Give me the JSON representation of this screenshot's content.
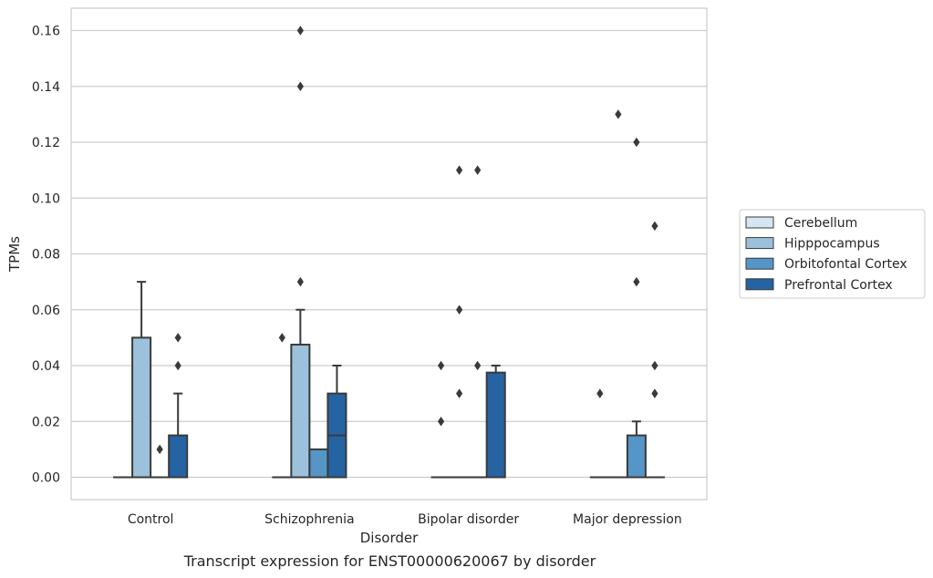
{
  "caption": "Transcript expression for ENST00000620067 by disorder",
  "chart_data": {
    "type": "box",
    "xlabel": "Disorder",
    "ylabel": "TPMs",
    "ylim": [
      -0.008,
      0.168
    ],
    "yticks": [
      "0.00",
      "0.02",
      "0.04",
      "0.06",
      "0.08",
      "0.10",
      "0.12",
      "0.14",
      "0.16"
    ],
    "grid": "horizontal",
    "legend_position": "right",
    "categories": [
      "Control",
      "Schizophrenia",
      "Bipolar disorder",
      "Major depression"
    ],
    "series": [
      {
        "name": "Cerebellum",
        "color": "#d6e5f2",
        "boxes": [
          {
            "q1": 0,
            "median": 0,
            "q3": 0,
            "whisker_low": 0,
            "whisker_high": 0,
            "outliers": []
          },
          {
            "q1": 0,
            "median": 0,
            "q3": 0,
            "whisker_low": 0,
            "whisker_high": 0,
            "outliers": [
              0.05
            ]
          },
          {
            "q1": 0,
            "median": 0,
            "q3": 0,
            "whisker_low": 0,
            "whisker_high": 0,
            "outliers": [
              0.02,
              0.04
            ]
          },
          {
            "q1": 0,
            "median": 0,
            "q3": 0,
            "whisker_low": 0,
            "whisker_high": 0,
            "outliers": [
              0.03
            ]
          }
        ]
      },
      {
        "name": "Hipppocampus",
        "color": "#9cc1dc",
        "boxes": [
          {
            "q1": 0,
            "median": 0,
            "q3": 0.05,
            "whisker_low": 0,
            "whisker_high": 0.07,
            "outliers": []
          },
          {
            "q1": 0,
            "median": 0,
            "q3": 0.0475,
            "whisker_low": 0,
            "whisker_high": 0.06,
            "outliers": [
              0.07,
              0.14,
              0.16
            ]
          },
          {
            "q1": 0,
            "median": 0,
            "q3": 0,
            "whisker_low": 0,
            "whisker_high": 0,
            "outliers": [
              0.03,
              0.06,
              0.11
            ]
          },
          {
            "q1": 0,
            "median": 0,
            "q3": 0,
            "whisker_low": 0,
            "whisker_high": 0,
            "outliers": [
              0.13
            ]
          }
        ]
      },
      {
        "name": "Orbitofontal Cortex",
        "color": "#5596c6",
        "boxes": [
          {
            "q1": 0,
            "median": 0,
            "q3": 0,
            "whisker_low": 0,
            "whisker_high": 0,
            "outliers": [
              0.01
            ]
          },
          {
            "q1": 0,
            "median": 0,
            "q3": 0.01,
            "whisker_low": 0,
            "whisker_high": 0.01,
            "outliers": []
          },
          {
            "q1": 0,
            "median": 0,
            "q3": 0,
            "whisker_low": 0,
            "whisker_high": 0,
            "outliers": [
              0.04,
              0.11
            ]
          },
          {
            "q1": 0,
            "median": 0,
            "q3": 0.015,
            "whisker_low": 0,
            "whisker_high": 0.02,
            "outliers": [
              0.07,
              0.12
            ]
          }
        ]
      },
      {
        "name": "Prefrontal Cortex",
        "color": "#2563a2",
        "boxes": [
          {
            "q1": 0,
            "median": 0,
            "q3": 0.015,
            "whisker_low": 0,
            "whisker_high": 0.03,
            "outliers": [
              0.04,
              0.05
            ]
          },
          {
            "q1": 0,
            "median": 0.015,
            "q3": 0.03,
            "whisker_low": 0,
            "whisker_high": 0.04,
            "outliers": []
          },
          {
            "q1": 0,
            "median": 0,
            "q3": 0.0375,
            "whisker_low": 0,
            "whisker_high": 0.04,
            "outliers": []
          },
          {
            "q1": 0,
            "median": 0,
            "q3": 0,
            "whisker_low": 0,
            "whisker_high": 0,
            "outliers": [
              0.03,
              0.04,
              0.09
            ]
          }
        ]
      }
    ]
  }
}
